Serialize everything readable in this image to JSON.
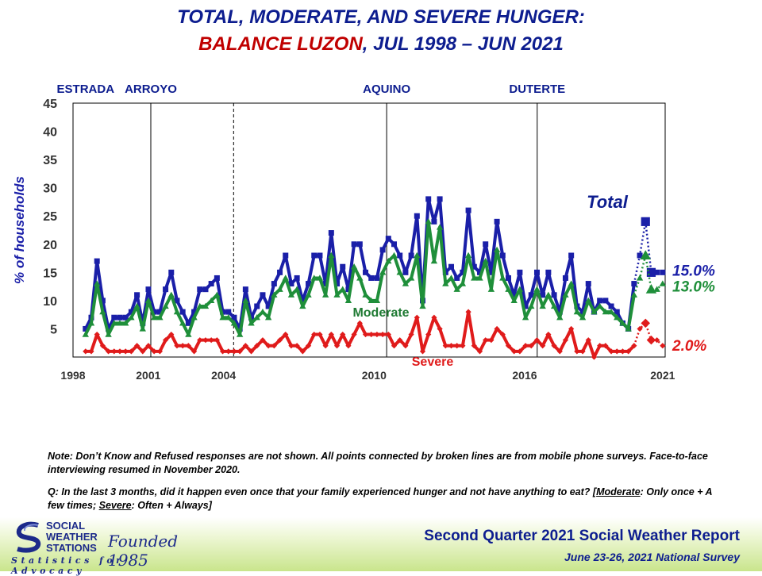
{
  "title_line1": "TOTAL, MODERATE, AND SEVERE HUNGER:",
  "title_line2_highlight": "BALANCE LUZON",
  "title_line2_rest": ", JUL 1998 – JUN 2021",
  "colors": {
    "total": "#1a1fa8",
    "moderate": "#1f8f3a",
    "severe": "#e01b1b",
    "title_blue": "#0d1d8f"
  },
  "chart_data": {
    "type": "line",
    "ylabel": "% of households",
    "ylim": [
      0,
      45
    ],
    "yticks": [
      5,
      10,
      15,
      20,
      25,
      30,
      35,
      40,
      45
    ],
    "xlim": [
      1998.0,
      2021.6
    ],
    "xticks": [
      {
        "label": "1998",
        "x": 1998.0
      },
      {
        "label": "2001",
        "x": 2001.0
      },
      {
        "label": "2004",
        "x": 2004.0
      },
      {
        "label": "2010",
        "x": 2010.0
      },
      {
        "label": "2016",
        "x": 2016.0
      },
      {
        "label": "2021",
        "x": 2021.5
      }
    ],
    "admin_periods": [
      {
        "label": "ESTRADA",
        "start": 1998.5
      },
      {
        "label": "ARROYO",
        "start": 2001.1
      },
      {
        "label": "AQUINO",
        "start": 2010.5
      },
      {
        "label": "DUTERTE",
        "start": 2016.5
      }
    ],
    "admin_dividers": [
      {
        "x": 2001.1,
        "style": "solid"
      },
      {
        "x": 2004.4,
        "style": "dashed"
      },
      {
        "x": 2010.5,
        "style": "solid"
      },
      {
        "x": 2016.5,
        "style": "solid"
      }
    ],
    "series": [
      {
        "name": "Total",
        "key": "total",
        "end_label": "15.0%",
        "values": [
          5,
          7,
          17,
          10,
          5,
          7,
          7,
          7,
          8,
          11,
          6,
          12,
          8,
          8,
          12,
          15,
          10,
          8,
          6,
          8,
          12,
          12,
          13,
          14,
          8,
          8,
          7,
          5,
          12,
          7,
          9,
          11,
          9,
          13,
          15,
          18,
          13,
          14,
          10,
          13,
          18,
          18,
          13,
          22,
          13,
          16,
          12,
          20,
          20,
          15,
          14,
          14,
          19,
          21,
          20,
          18,
          15,
          18,
          25,
          10,
          28,
          24,
          28,
          15,
          16,
          14,
          15,
          26,
          16,
          15,
          20,
          15,
          24,
          18,
          14,
          11,
          15,
          9,
          11,
          15,
          11,
          15,
          11,
          8,
          14,
          18,
          9,
          8,
          13,
          8,
          10,
          10,
          9,
          8,
          6,
          5,
          13,
          18,
          24,
          15,
          15,
          15
        ]
      },
      {
        "name": "Moderate",
        "key": "moderate",
        "end_label": "13.0%",
        "values": [
          4,
          6,
          13,
          8,
          4,
          6,
          6,
          6,
          7,
          9,
          5,
          10,
          7,
          7,
          9,
          11,
          8,
          6,
          4,
          7,
          9,
          9,
          10,
          11,
          7,
          7,
          6,
          4,
          10,
          6,
          7,
          8,
          7,
          11,
          12,
          14,
          11,
          12,
          9,
          11,
          14,
          14,
          11,
          18,
          11,
          12,
          10,
          16,
          14,
          11,
          10,
          10,
          15,
          17,
          18,
          15,
          13,
          14,
          18,
          9,
          24,
          17,
          23,
          13,
          14,
          12,
          13,
          18,
          14,
          14,
          17,
          12,
          19,
          14,
          12,
          10,
          12,
          7,
          9,
          12,
          9,
          11,
          9,
          7,
          11,
          13,
          8,
          7,
          10,
          8,
          9,
          8,
          8,
          7,
          6,
          5,
          11,
          14,
          18,
          12,
          12,
          13
        ]
      },
      {
        "name": "Severe",
        "key": "severe",
        "end_label": "2.0%",
        "values": [
          1,
          1,
          4,
          2,
          1,
          1,
          1,
          1,
          1,
          2,
          1,
          2,
          1,
          1,
          3,
          4,
          2,
          2,
          2,
          1,
          3,
          3,
          3,
          3,
          1,
          1,
          1,
          1,
          2,
          1,
          2,
          3,
          2,
          2,
          3,
          4,
          2,
          2,
          1,
          2,
          4,
          4,
          2,
          4,
          2,
          4,
          2,
          4,
          6,
          4,
          4,
          4,
          4,
          4,
          2,
          3,
          2,
          4,
          7,
          1,
          4,
          7,
          5,
          2,
          2,
          2,
          2,
          8,
          2,
          1,
          3,
          3,
          5,
          4,
          2,
          1,
          1,
          2,
          2,
          3,
          2,
          4,
          2,
          1,
          3,
          5,
          1,
          1,
          3,
          0,
          2,
          2,
          1,
          1,
          1,
          1,
          2,
          5,
          6,
          3,
          3,
          2
        ]
      }
    ],
    "series_labels": {
      "total": "Total",
      "moderate": "Moderate",
      "severe": "Severe"
    }
  },
  "notes": {
    "note1": "Note: Don’t Know and Refused responses are not shown. All points connected by broken lines are from mobile phone surveys. Face-to-face interviewing resumed in November 2020.",
    "note2_prefix": "Q: In the last 3 months, did it happen even once that your family experienced hunger and not have anything to eat? [",
    "note2_mod": "Moderate",
    "note2_mid": ": Only once + A few times; ",
    "note2_sev": "Severe",
    "note2_end": ": Often + Always]"
  },
  "logo": {
    "line1": "SOCIAL",
    "line2": "WEATHER",
    "line3": "STATIONS",
    "script": "Founded 1985",
    "tagline": "Statistics for Advocacy"
  },
  "footer": {
    "report": "Second Quarter 2021 Social Weather Report",
    "survey": "June 23-26, 2021 National Survey"
  }
}
